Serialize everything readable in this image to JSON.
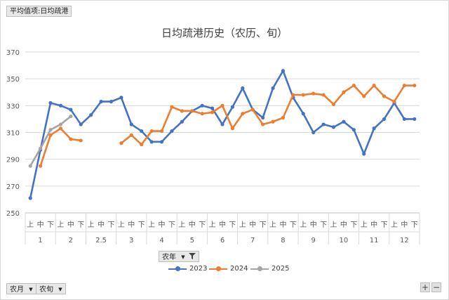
{
  "pivot": {
    "value_button": "平均值项:日均疏港",
    "year_button": "农年",
    "month_button": "农月",
    "period_button": "农旬"
  },
  "zoom": {
    "plus": "+",
    "minus": "−"
  },
  "chart_data": {
    "type": "line",
    "title": "日均疏港历史（农历、旬）",
    "ylim": [
      250,
      370
    ],
    "yticks": [
      250,
      270,
      290,
      310,
      330,
      350,
      370
    ],
    "grid": true,
    "legend_position": "bottom",
    "groups": [
      "1",
      "2",
      "2.5",
      "3",
      "4",
      "5",
      "6",
      "7",
      "8",
      "9",
      "10",
      "11",
      "12"
    ],
    "subcategories": [
      "上",
      "中",
      "下"
    ],
    "categories": [
      "1上",
      "1中",
      "1下",
      "2上",
      "2中",
      "2下",
      "2.5上",
      "2.5中",
      "2.5下",
      "3上",
      "3中",
      "3下",
      "4上",
      "4中",
      "4下",
      "5上",
      "5中",
      "5下",
      "6上",
      "6中",
      "6下",
      "7上",
      "7中",
      "7下",
      "8上",
      "8中",
      "8下",
      "9上",
      "9中",
      "9下",
      "10上",
      "10中",
      "10下",
      "11上",
      "11中",
      "11下",
      "12上",
      "12中",
      "12下"
    ],
    "series": [
      {
        "name": "2023",
        "color": "#4472c4",
        "values": [
          261,
          297,
          332,
          330,
          327,
          316,
          323,
          333,
          333,
          336,
          316,
          311,
          303,
          303,
          311,
          318,
          326,
          330,
          328,
          316,
          329,
          343,
          327,
          321,
          343,
          356,
          336,
          324,
          310,
          316,
          314,
          318,
          312,
          294,
          313,
          320,
          332,
          320,
          320
        ]
      },
      {
        "name": "2024",
        "color": "#ed7d31",
        "values": [
          null,
          285,
          308,
          313,
          305,
          304,
          null,
          null,
          null,
          302,
          308,
          301,
          311,
          311,
          329,
          326,
          326,
          324,
          325,
          330,
          313,
          324,
          327,
          316,
          318,
          321,
          338,
          338,
          339,
          338,
          331,
          340,
          345,
          337,
          345,
          337,
          333,
          345,
          345
        ]
      },
      {
        "name": "2025",
        "color": "#a5a5a5",
        "values": [
          285,
          298,
          312,
          316,
          322,
          null,
          null,
          null,
          null,
          null,
          null,
          null,
          null,
          null,
          null,
          null,
          null,
          null,
          null,
          null,
          null,
          null,
          null,
          null,
          null,
          null,
          null,
          null,
          null,
          null,
          null,
          null,
          null,
          null,
          null,
          null,
          null,
          null,
          null
        ]
      }
    ]
  }
}
